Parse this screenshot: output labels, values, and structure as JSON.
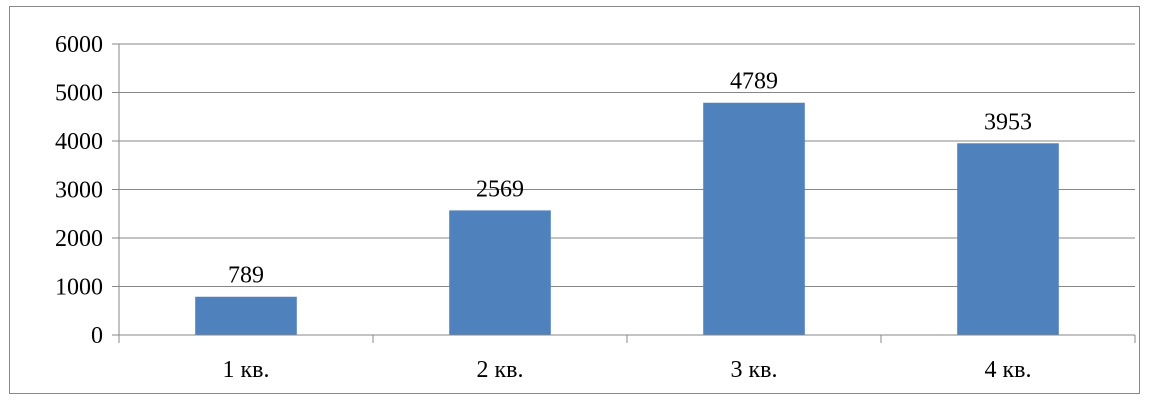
{
  "chart_data": {
    "type": "bar",
    "categories": [
      "1 кв.",
      "2 кв.",
      "3 кв.",
      "4 кв."
    ],
    "values": [
      789,
      2569,
      4789,
      3953
    ],
    "data_labels": [
      "789",
      "2569",
      "4789",
      "3953"
    ],
    "title": "",
    "xlabel": "",
    "ylabel": "",
    "ylim": [
      0,
      6000
    ],
    "yticks": [
      "0",
      "1000",
      "2000",
      "3000",
      "4000",
      "5000",
      "6000"
    ],
    "grid": true,
    "legend": "none",
    "colors": {
      "bar": "#4F81BD",
      "grid": "#878787",
      "axis": "#878787"
    }
  }
}
